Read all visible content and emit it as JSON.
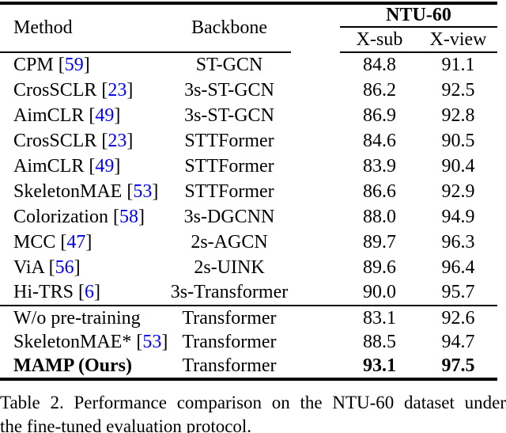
{
  "table": {
    "header": {
      "method": "Method",
      "backbone": "Backbone",
      "group": "NTU-60",
      "sub_cols": [
        "X-sub",
        "X-view"
      ]
    },
    "rows": [
      {
        "method": "CPM",
        "cite": "59",
        "backbone": "ST-GCN",
        "xsub": "84.8",
        "xview": "91.1",
        "bold": false,
        "rule_above": false
      },
      {
        "method": "CrosSCLR",
        "cite": "23",
        "backbone": "3s-ST-GCN",
        "xsub": "86.2",
        "xview": "92.5",
        "bold": false,
        "rule_above": false
      },
      {
        "method": "AimCLR",
        "cite": "49",
        "backbone": "3s-ST-GCN",
        "xsub": "86.9",
        "xview": "92.8",
        "bold": false,
        "rule_above": false
      },
      {
        "method": "CrosSCLR",
        "cite": "23",
        "backbone": "STTFormer",
        "xsub": "84.6",
        "xview": "90.5",
        "bold": false,
        "rule_above": false
      },
      {
        "method": "AimCLR",
        "cite": "49",
        "backbone": "STTFormer",
        "xsub": "83.9",
        "xview": "90.4",
        "bold": false,
        "rule_above": false
      },
      {
        "method": "SkeletonMAE",
        "cite": "53",
        "backbone": "STTFormer",
        "xsub": "86.6",
        "xview": "92.9",
        "bold": false,
        "rule_above": false
      },
      {
        "method": "Colorization",
        "cite": "58",
        "backbone": "3s-DGCNN",
        "xsub": "88.0",
        "xview": "94.9",
        "bold": false,
        "rule_above": false
      },
      {
        "method": "MCC",
        "cite": "47",
        "backbone": "2s-AGCN",
        "xsub": "89.7",
        "xview": "96.3",
        "bold": false,
        "rule_above": false
      },
      {
        "method": "ViA",
        "cite": "56",
        "backbone": "2s-UINK",
        "xsub": "89.6",
        "xview": "96.4",
        "bold": false,
        "rule_above": false
      },
      {
        "method": "Hi-TRS",
        "cite": "6",
        "backbone": "3s-Transformer",
        "xsub": "90.0",
        "xview": "95.7",
        "bold": false,
        "rule_above": false
      },
      {
        "method": "W/o pre-training",
        "cite": null,
        "backbone": "Transformer",
        "xsub": "83.1",
        "xview": "92.6",
        "bold": false,
        "rule_above": true,
        "compact": true
      },
      {
        "method": "SkeletonMAE*",
        "cite": "53",
        "backbone": "Transformer",
        "xsub": "88.5",
        "xview": "94.7",
        "bold": false,
        "rule_above": false,
        "compact": true
      },
      {
        "method": "MAMP (Ours)",
        "cite": null,
        "backbone": "Transformer",
        "xsub": "93.1",
        "xview": "97.5",
        "bold": true,
        "rule_above": false,
        "compact": true
      }
    ]
  },
  "caption": {
    "line1": "Table 2. Performance comparison on the NTU-60 dataset under",
    "line2": "the fine-tuned evaluation protocol."
  },
  "colors": {
    "citation_blue": "#0000EE",
    "text": "#000000",
    "background": "#ffffff"
  }
}
